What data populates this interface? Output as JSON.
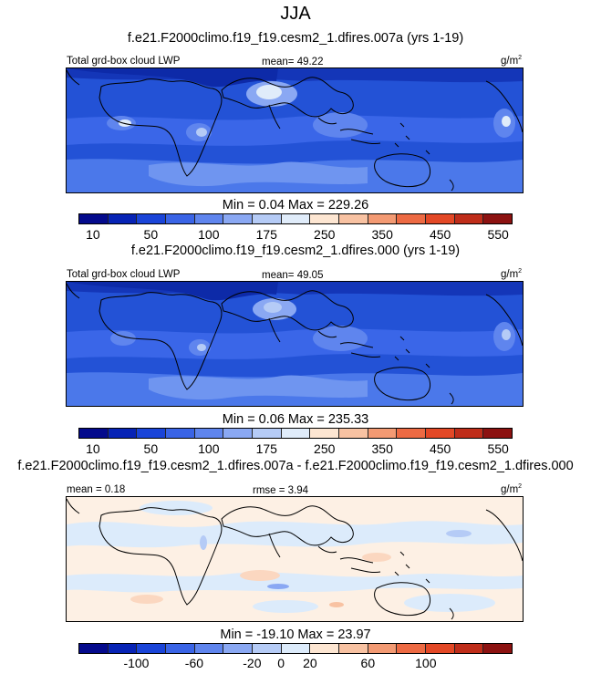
{
  "season": "JJA",
  "panels": [
    {
      "title": "f.e21.F2000climo.f19_f19.cesm2_1.dfires.007a (yrs 1-19)",
      "variable": "Total grd-box cloud LWP",
      "stat_label": "mean=",
      "stat_value": "49.22",
      "units": "g/m",
      "units_exp": "2",
      "minmax": "Min =   0.04 Max = 229.26",
      "colorbar_ticks": [
        "10",
        "50",
        "100",
        "175",
        "250",
        "350",
        "450",
        "550"
      ],
      "colorbar_colors": [
        "#040a8c",
        "#0723b5",
        "#1a44d8",
        "#3a64e6",
        "#5f85ee",
        "#8aa8f3",
        "#b5cbf6",
        "#e0ecfa",
        "#fde6d2",
        "#f8c2a2",
        "#f39a73",
        "#ed6a43",
        "#e34826",
        "#bf2d1a",
        "#8c1211"
      ]
    },
    {
      "title": "f.e21.F2000climo.f19_f19.cesm2_1.dfires.000 (yrs 1-19)",
      "variable": "Total grd-box cloud LWP",
      "stat_label": "mean=",
      "stat_value": "49.05",
      "units": "g/m",
      "units_exp": "2",
      "minmax": "Min =   0.06 Max = 235.33",
      "colorbar_ticks": [
        "10",
        "50",
        "100",
        "175",
        "250",
        "350",
        "450",
        "550"
      ],
      "colorbar_colors": [
        "#040a8c",
        "#0723b5",
        "#1a44d8",
        "#3a64e6",
        "#5f85ee",
        "#8aa8f3",
        "#b5cbf6",
        "#e0ecfa",
        "#fde6d2",
        "#f8c2a2",
        "#f39a73",
        "#ed6a43",
        "#e34826",
        "#bf2d1a",
        "#8c1211"
      ]
    },
    {
      "title": "f.e21.F2000climo.f19_f19.cesm2_1.dfires.007a - f.e21.F2000climo.f19_f19.cesm2_1.dfires.000",
      "mean_label": "mean =",
      "mean_value": "0.18",
      "stat_label": "rmse =",
      "stat_value": "3.94",
      "units": "g/m",
      "units_exp": "2",
      "minmax": "Min = -19.10 Max =  23.97",
      "colorbar_ticks": [
        "-100",
        "-60",
        "-20",
        "0",
        "20",
        "60",
        "100"
      ],
      "colorbar_colors": [
        "#040a8c",
        "#0723b5",
        "#1a44d8",
        "#3a64e6",
        "#5f85ee",
        "#8aa8f3",
        "#b5cbf6",
        "#dcebfb",
        "#fde6d2",
        "#f8c2a2",
        "#f39a73",
        "#ed6a43",
        "#e34826",
        "#bf2d1a",
        "#8c1211"
      ]
    }
  ],
  "chart_data": [
    {
      "type": "heatmap",
      "title": "f.e21.F2000climo.f19_f19.cesm2_1.dfires.007a (yrs 1-19)",
      "field": "Total grd-box cloud LWP",
      "units": "g/m2",
      "mean": 49.22,
      "min": 0.04,
      "max": 229.26,
      "contour_levels": [
        10,
        25,
        50,
        75,
        100,
        125,
        150,
        175,
        200,
        250,
        300,
        350,
        400,
        450,
        500,
        550
      ]
    },
    {
      "type": "heatmap",
      "title": "f.e21.F2000climo.f19_f19.cesm2_1.dfires.000 (yrs 1-19)",
      "field": "Total grd-box cloud LWP",
      "units": "g/m2",
      "mean": 49.05,
      "min": 0.06,
      "max": 235.33,
      "contour_levels": [
        10,
        25,
        50,
        75,
        100,
        125,
        150,
        175,
        200,
        250,
        300,
        350,
        400,
        450,
        500,
        550
      ]
    },
    {
      "type": "heatmap",
      "title": "f.e21.F2000climo.f19_f19.cesm2_1.dfires.007a - f.e21.F2000climo.f19_f19.cesm2_1.dfires.000",
      "units": "g/m2",
      "mean": 0.18,
      "rmse": 3.94,
      "min": -19.1,
      "max": 23.97,
      "contour_levels": [
        -100,
        -80,
        -60,
        -40,
        -20,
        -10,
        0,
        10,
        20,
        40,
        60,
        80,
        100
      ]
    }
  ]
}
